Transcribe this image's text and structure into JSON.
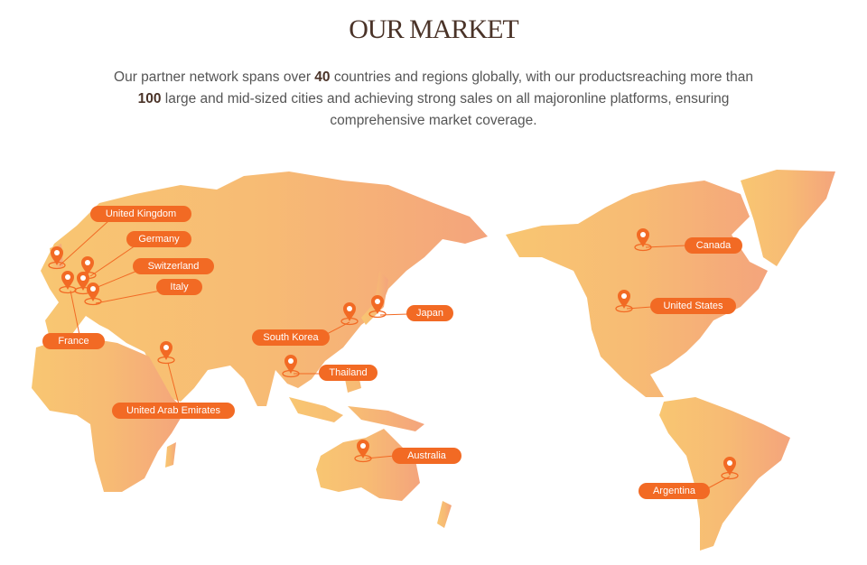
{
  "header": {
    "title": "OUR MARKET"
  },
  "intro": {
    "p1": "Our partner network spans over ",
    "n1": "40",
    "p2": " countries and regions globally, with our productsreaching more than ",
    "n2": "100",
    "p3": " large and mid-sized cities and achieving strong sales on all majoronline platforms, ensuring comprehensive market coverage."
  },
  "colors": {
    "accent": "#f26a24",
    "map_left": "#f8c672",
    "map_right": "#f4a47c",
    "title": "#4a3328"
  },
  "markets": [
    {
      "name": "United Kingdom",
      "icon": "map-pin-icon"
    },
    {
      "name": "Germany",
      "icon": "map-pin-icon"
    },
    {
      "name": "Switzerland",
      "icon": "map-pin-icon"
    },
    {
      "name": "Italy",
      "icon": "map-pin-icon"
    },
    {
      "name": "France",
      "icon": "map-pin-icon"
    },
    {
      "name": "United Arab Emirates",
      "icon": "map-pin-icon"
    },
    {
      "name": "South Korea",
      "icon": "map-pin-icon"
    },
    {
      "name": "Japan",
      "icon": "map-pin-icon"
    },
    {
      "name": "Thailand",
      "icon": "map-pin-icon"
    },
    {
      "name": "Australia",
      "icon": "map-pin-icon"
    },
    {
      "name": "Canada",
      "icon": "map-pin-icon"
    },
    {
      "name": "United States",
      "icon": "map-pin-icon"
    },
    {
      "name": "Argentina",
      "icon": "map-pin-icon"
    }
  ]
}
